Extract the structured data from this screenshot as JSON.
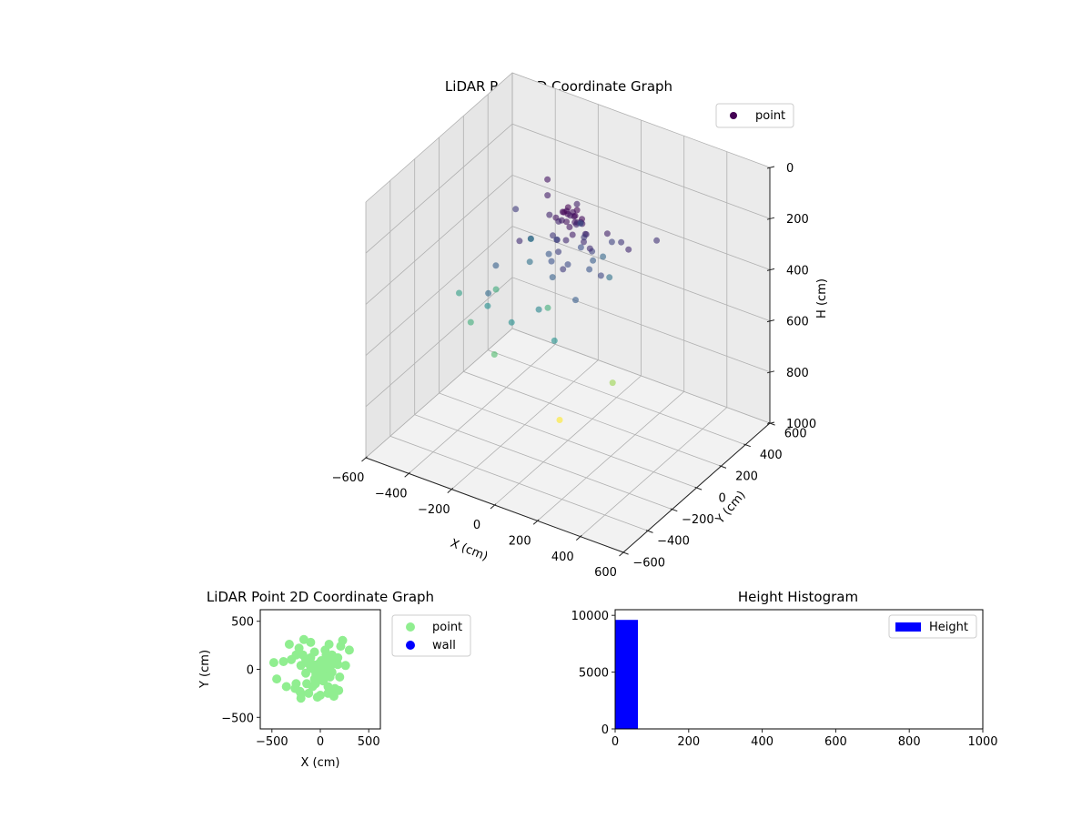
{
  "chart_data": [
    {
      "type": "scatter",
      "projection": "3d",
      "title": "LiDAR Point 3D Coordinate Graph",
      "xlabel": "X (cm)",
      "ylabel": "Y (cm)",
      "zlabel": "H (cm)",
      "xlim": [
        -600,
        600
      ],
      "ylim": [
        -600,
        600
      ],
      "zlim": [
        0,
        1000
      ],
      "z_inverted": true,
      "xticks": [
        "−600",
        "−400",
        "−200",
        "0",
        "200",
        "400",
        "600"
      ],
      "yticks": [
        "−600",
        "−400",
        "−200",
        "0",
        "200",
        "400",
        "600"
      ],
      "zticks": [
        "0",
        "200",
        "400",
        "600",
        "800",
        "1000"
      ],
      "grid": true,
      "legend": {
        "position": "upper right",
        "entries": [
          {
            "label": "point",
            "color": "#440154"
          }
        ]
      },
      "colormap": "viridis",
      "series": [
        {
          "name": "point",
          "points": [
            [
              -10,
              20,
              100
            ],
            [
              20,
              40,
              110
            ],
            [
              -30,
              10,
              120
            ],
            [
              40,
              -10,
              105
            ],
            [
              0,
              0,
              115
            ],
            [
              15,
              25,
              130
            ],
            [
              -25,
              35,
              125
            ],
            [
              30,
              5,
              140
            ],
            [
              5,
              -20,
              135
            ],
            [
              -15,
              -5,
              110
            ],
            [
              50,
              30,
              150
            ],
            [
              -40,
              20,
              160
            ],
            [
              25,
              -30,
              145
            ],
            [
              60,
              10,
              120
            ],
            [
              -5,
              50,
              130
            ],
            [
              35,
              45,
              155
            ],
            [
              -50,
              -10,
              140
            ],
            [
              10,
              60,
              170
            ],
            [
              45,
              -40,
              165
            ],
            [
              -20,
              55,
              150
            ],
            [
              70,
              20,
              180
            ],
            [
              -60,
              30,
              175
            ],
            [
              20,
              -50,
              190
            ],
            [
              0,
              70,
              185
            ],
            [
              55,
              55,
              200
            ],
            [
              -30,
              -35,
              210
            ],
            [
              80,
              -10,
              195
            ],
            [
              -70,
              0,
              220
            ],
            [
              30,
              80,
              230
            ],
            [
              -10,
              -60,
              240
            ],
            [
              90,
              40,
              250
            ],
            [
              -80,
              50,
              260
            ],
            [
              40,
              -70,
              270
            ],
            [
              10,
              90,
              280
            ],
            [
              -45,
              -55,
              290
            ],
            [
              100,
              0,
              300
            ],
            [
              -100,
              20,
              310
            ],
            [
              60,
              100,
              320
            ],
            [
              -20,
              -90,
              330
            ],
            [
              120,
              -30,
              200
            ],
            [
              -120,
              60,
              180
            ],
            [
              150,
              60,
              170
            ],
            [
              -150,
              -40,
              240
            ],
            [
              180,
              120,
              220
            ],
            [
              -180,
              150,
              160
            ],
            [
              200,
              -80,
              260
            ],
            [
              -220,
              220,
              140
            ],
            [
              260,
              40,
              190
            ],
            [
              300,
              200,
              210
            ],
            [
              -300,
              100,
              230
            ],
            [
              120,
              150,
              250
            ],
            [
              -140,
              -150,
              200
            ],
            [
              80,
              -180,
              230
            ],
            [
              -60,
              180,
              170
            ],
            [
              -250,
              -150,
              330
            ],
            [
              -200,
              40,
              380
            ],
            [
              -320,
              260,
              420
            ],
            [
              -260,
              -200,
              470
            ],
            [
              -450,
              -100,
              520
            ],
            [
              -200,
              -300,
              360
            ],
            [
              50,
              200,
              350
            ],
            [
              150,
              -200,
              320
            ],
            [
              -100,
              280,
              300
            ],
            [
              -50,
              -150,
              440
            ],
            [
              -120,
              -250,
              470
            ],
            [
              80,
              -250,
              480
            ],
            [
              120,
              130,
              380
            ],
            [
              -380,
              80,
              560
            ],
            [
              -350,
              -180,
              570
            ],
            [
              -150,
              100,
              570
            ],
            [
              -200,
              -250,
              620
            ],
            [
              180,
              50,
              740
            ],
            [
              30,
              -120,
              860
            ]
          ]
        }
      ]
    },
    {
      "type": "scatter",
      "title": "LiDAR Point 2D Coordinate Graph",
      "xlabel": "X (cm)",
      "ylabel": "Y (cm)",
      "xlim": [
        -620,
        620
      ],
      "ylim": [
        -620,
        620
      ],
      "xticks": [
        "−500",
        "0",
        "500"
      ],
      "yticks": [
        "−500",
        "0",
        "500"
      ],
      "legend": {
        "position": "outside right",
        "entries": [
          {
            "label": "point",
            "color": "#90ee90"
          },
          {
            "label": "wall",
            "color": "#0000ff"
          }
        ]
      },
      "series": [
        {
          "name": "point",
          "color": "#90ee90",
          "points": [
            [
              -10,
              20
            ],
            [
              20,
              40
            ],
            [
              -30,
              10
            ],
            [
              40,
              -10
            ],
            [
              0,
              0
            ],
            [
              15,
              25
            ],
            [
              -25,
              35
            ],
            [
              30,
              5
            ],
            [
              5,
              -20
            ],
            [
              -15,
              -5
            ],
            [
              50,
              30
            ],
            [
              -40,
              20
            ],
            [
              25,
              -30
            ],
            [
              60,
              10
            ],
            [
              -5,
              50
            ],
            [
              35,
              45
            ],
            [
              -50,
              -10
            ],
            [
              10,
              60
            ],
            [
              45,
              -40
            ],
            [
              -20,
              55
            ],
            [
              70,
              20
            ],
            [
              -60,
              30
            ],
            [
              20,
              -50
            ],
            [
              0,
              70
            ],
            [
              55,
              55
            ],
            [
              -30,
              -35
            ],
            [
              80,
              -10
            ],
            [
              -70,
              0
            ],
            [
              30,
              80
            ],
            [
              -10,
              -60
            ],
            [
              90,
              40
            ],
            [
              -80,
              50
            ],
            [
              40,
              -70
            ],
            [
              10,
              90
            ],
            [
              -45,
              -55
            ],
            [
              100,
              0
            ],
            [
              -100,
              20
            ],
            [
              60,
              100
            ],
            [
              -20,
              -90
            ],
            [
              120,
              -30
            ],
            [
              -120,
              60
            ],
            [
              150,
              60
            ],
            [
              -150,
              -40
            ],
            [
              180,
              120
            ],
            [
              -180,
              150
            ],
            [
              200,
              -80
            ],
            [
              -220,
              220
            ],
            [
              260,
              40
            ],
            [
              300,
              200
            ],
            [
              -300,
              100
            ],
            [
              120,
              150
            ],
            [
              -140,
              -150
            ],
            [
              80,
              -180
            ],
            [
              -60,
              180
            ],
            [
              -250,
              -150
            ],
            [
              -200,
              40
            ],
            [
              -320,
              260
            ],
            [
              -260,
              -200
            ],
            [
              -450,
              -100
            ],
            [
              -200,
              -300
            ],
            [
              50,
              200
            ],
            [
              150,
              -200
            ],
            [
              -100,
              280
            ],
            [
              -50,
              -150
            ],
            [
              -120,
              -250
            ],
            [
              80,
              -250
            ],
            [
              120,
              130
            ],
            [
              -380,
              80
            ],
            [
              -350,
              -180
            ],
            [
              -150,
              100
            ],
            [
              -200,
              -250
            ],
            [
              180,
              50
            ],
            [
              30,
              -120
            ],
            [
              -480,
              70
            ],
            [
              -250,
              150
            ],
            [
              0,
              -270
            ],
            [
              -170,
              310
            ],
            [
              90,
              260
            ],
            [
              -210,
              -230
            ],
            [
              210,
              240
            ],
            [
              -30,
              -290
            ],
            [
              140,
              -280
            ],
            [
              190,
              -220
            ],
            [
              230,
              300
            ],
            [
              -100,
              120
            ],
            [
              100,
              -80
            ],
            [
              -60,
              -100
            ],
            [
              60,
              150
            ],
            [
              -80,
              -180
            ],
            [
              110,
              60
            ]
          ]
        },
        {
          "name": "wall",
          "color": "#0000ff",
          "points": []
        }
      ]
    },
    {
      "type": "bar",
      "subtype": "histogram",
      "title": "Height Histogram",
      "xlim": [
        0,
        1000
      ],
      "ylim": [
        0,
        10500
      ],
      "xticks": [
        "0",
        "200",
        "400",
        "600",
        "800",
        "1000"
      ],
      "yticks": [
        "0",
        "5000",
        "10000"
      ],
      "legend": {
        "position": "upper right",
        "entries": [
          {
            "label": "Height",
            "color": "#0000ff"
          }
        ]
      },
      "series": [
        {
          "name": "Height",
          "color": "#0000ff",
          "bins": [
            {
              "start": 0,
              "end": 62,
              "value": 9600
            }
          ]
        }
      ]
    }
  ]
}
